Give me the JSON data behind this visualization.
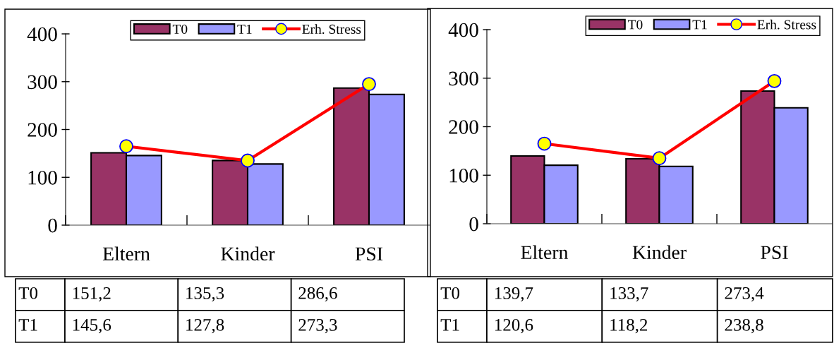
{
  "chart_data": [
    {
      "type": "bar",
      "categories": [
        "Eltern",
        "Kinder",
        "PSI"
      ],
      "ylim": [
        0,
        400
      ],
      "yticks": [
        0,
        100,
        200,
        300,
        400
      ],
      "grid": false,
      "legend": "top",
      "marker": "circle",
      "series": [
        {
          "name": "T0",
          "color": "#993366",
          "values": [
            151.2,
            135.3,
            286.6
          ],
          "value_labels": [
            "151,2",
            "135,3",
            "286,6"
          ]
        },
        {
          "name": "T1",
          "color": "#9999ff",
          "values": [
            145.6,
            127.8,
            273.3
          ],
          "value_labels": [
            "145,6",
            "127,8",
            "273,3"
          ]
        },
        {
          "name": "Erh. Stress",
          "type": "line",
          "color": "#ff0000",
          "values": [
            165,
            135,
            295
          ]
        }
      ]
    },
    {
      "type": "bar",
      "categories": [
        "Eltern",
        "Kinder",
        "PSI"
      ],
      "ylim": [
        0,
        400
      ],
      "yticks": [
        0,
        100,
        200,
        300,
        400
      ],
      "grid": false,
      "legend": "top right",
      "marker": "circle",
      "series": [
        {
          "name": "T0",
          "color": "#993366",
          "values": [
            139.7,
            133.7,
            273.4
          ],
          "value_labels": [
            "139,7",
            "133,7",
            "273,4"
          ]
        },
        {
          "name": "T1",
          "color": "#9999ff",
          "values": [
            120.6,
            118.2,
            238.8
          ],
          "value_labels": [
            "120,6",
            "118,2",
            "238,8"
          ]
        },
        {
          "name": "Erh. Stress",
          "type": "line",
          "color": "#ff0000",
          "values": [
            165,
            135,
            294
          ]
        }
      ]
    }
  ]
}
